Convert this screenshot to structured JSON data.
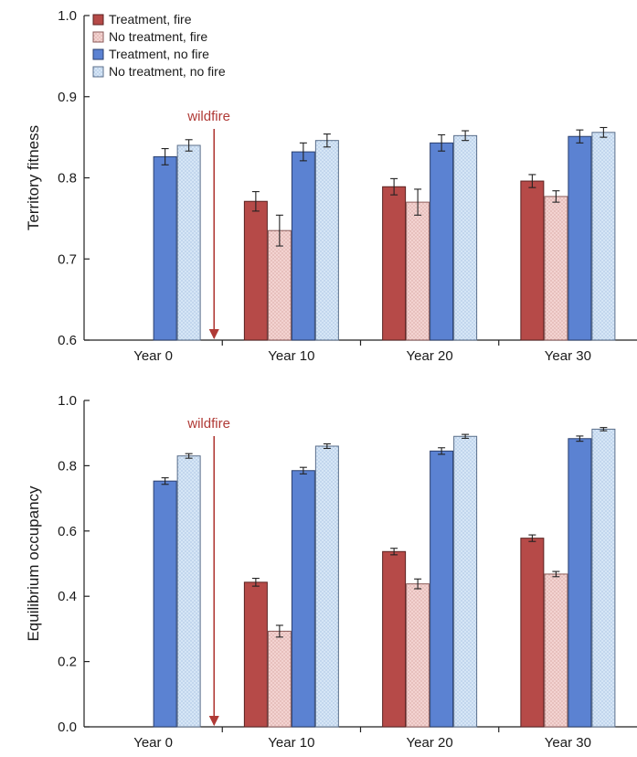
{
  "colors": {
    "treatment_fire": "#b64a48",
    "no_treatment_fire": "#f3d3d1",
    "treatment_no_fire": "#5b82d2",
    "no_treatment_no_fire": "#d6e6f6",
    "wildfire": "#b03a36"
  },
  "chart_data": [
    {
      "type": "bar",
      "ylabel": "Territory fitness",
      "ylim": [
        0.6,
        1.0
      ],
      "yticks": [
        "0.6",
        "0.7",
        "0.8",
        "0.9",
        "1.0"
      ],
      "grid": false,
      "legend_position": "top-left",
      "categories": [
        "Year 0",
        "Year 10",
        "Year 20",
        "Year 30"
      ],
      "series": [
        {
          "name": "Treatment, fire",
          "values": [
            null,
            0.771,
            0.789,
            0.796
          ],
          "errors": [
            null,
            0.012,
            0.01,
            0.008
          ]
        },
        {
          "name": "No treatment, fire",
          "values": [
            null,
            0.735,
            0.77,
            0.777
          ],
          "errors": [
            null,
            0.019,
            0.016,
            0.007
          ]
        },
        {
          "name": "Treatment, no fire",
          "values": [
            0.826,
            0.832,
            0.843,
            0.851
          ],
          "errors": [
            0.01,
            0.011,
            0.01,
            0.008
          ]
        },
        {
          "name": "No treatment, no fire",
          "values": [
            0.84,
            0.846,
            0.852,
            0.856
          ],
          "errors": [
            0.007,
            0.008,
            0.006,
            0.006
          ]
        }
      ],
      "annotations": [
        {
          "text": "wildfire"
        }
      ]
    },
    {
      "type": "bar",
      "ylabel": "Equilibrium occupancy",
      "ylim": [
        0.0,
        1.0
      ],
      "yticks": [
        "0.0",
        "0.2",
        "0.4",
        "0.6",
        "0.8",
        "1.0"
      ],
      "grid": false,
      "categories": [
        "Year 0",
        "Year 10",
        "Year 20",
        "Year 30"
      ],
      "series": [
        {
          "name": "Treatment, fire",
          "values": [
            null,
            0.443,
            0.537,
            0.578
          ],
          "errors": [
            null,
            0.012,
            0.01,
            0.01
          ]
        },
        {
          "name": "No treatment, fire",
          "values": [
            null,
            0.293,
            0.438,
            0.468
          ],
          "errors": [
            null,
            0.018,
            0.015,
            0.008
          ]
        },
        {
          "name": "Treatment, no fire",
          "values": [
            0.753,
            0.785,
            0.845,
            0.883
          ],
          "errors": [
            0.01,
            0.01,
            0.01,
            0.008
          ]
        },
        {
          "name": "No treatment, no fire",
          "values": [
            0.83,
            0.86,
            0.89,
            0.912
          ],
          "errors": [
            0.007,
            0.007,
            0.006,
            0.005
          ]
        }
      ],
      "annotations": [
        {
          "text": "wildfire"
        }
      ]
    }
  ]
}
